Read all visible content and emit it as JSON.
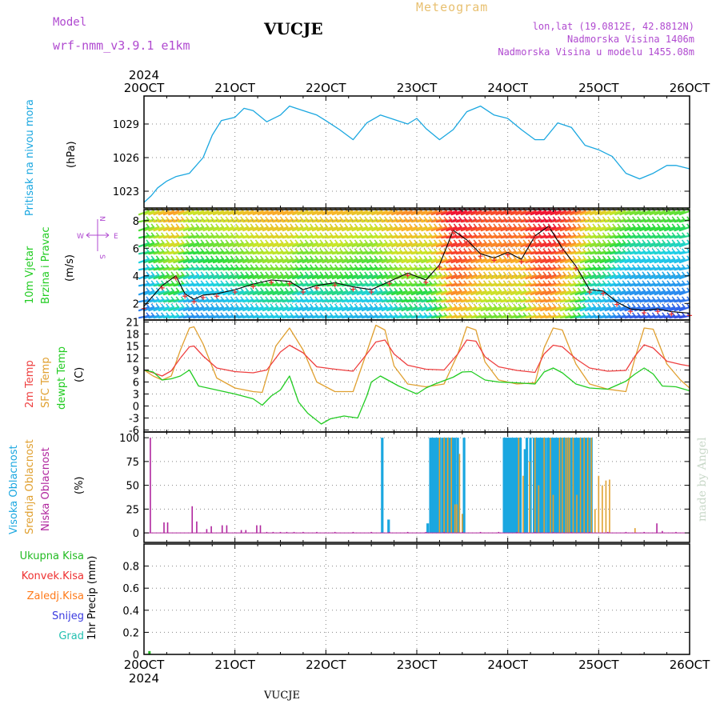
{
  "header": {
    "model_label": "Model",
    "model_name": "wrf-nmm_v3.9.1  e1km",
    "station": "VUCJE",
    "product": "Meteogram",
    "lonlat": "lon,lat (19.0812E, 42.8812N)",
    "elevation": "Nadmorska Visina 1406m",
    "model_elevation": "Nadmorska Visina u modelu 1455.08m",
    "credit": "made by Angel",
    "footer_station": "VUCJE"
  },
  "colors": {
    "pressure": "#1aa7e0",
    "temp2m": "#ee4040",
    "sfc_temp": "#e0a030",
    "dewpt": "#22cc22",
    "cloud_high": "#1aa7e0",
    "cloud_mid": "#e0a030",
    "cloud_low": "#b0269e",
    "precip_total": "#22bb22",
    "precip_conv": "#ee3030",
    "precip_freezing": "#ff7a1a",
    "snow": "#3a3ae0",
    "hail": "#22c0b0",
    "wind_axis_label": "#b04ad0",
    "grid": "#888888"
  },
  "axes": {
    "time_ticks": [
      "20OCT",
      "21OCT",
      "22OCT",
      "23OCT",
      "24OCT",
      "25OCT",
      "26OCT"
    ],
    "year": "2024"
  },
  "panels": {
    "pressure": {
      "ylabel": "Pritisak na nivou mora",
      "unit": "(hPa)",
      "yticks": [
        "1023",
        "1026",
        "1029"
      ]
    },
    "wind": {
      "ylabel_1": "10m Vjetar",
      "ylabel_2": "Brzina i Pravac",
      "unit": "(m/s)",
      "compass_n": "N",
      "compass_s": "S",
      "compass_w": "W",
      "compass_e": "E",
      "yticks": [
        "2",
        "4",
        "6",
        "8"
      ]
    },
    "temperature": {
      "ylabel_1": "2m Temp",
      "ylabel_2": "SFC Temp",
      "ylabel_3": "dewpt Temp",
      "unit": "(C)",
      "yticks": [
        "-6",
        "-3",
        "0",
        "3",
        "6",
        "9",
        "12",
        "15",
        "18",
        "21"
      ]
    },
    "clouds": {
      "ylabel_1": "Visoka Oblacnost",
      "ylabel_2": "Srednja Oblacnost",
      "ylabel_3": "Niska Oblacnost",
      "unit": "(%)",
      "yticks": [
        "0",
        "25",
        "50",
        "75",
        "100"
      ]
    },
    "precip": {
      "legend": [
        "Ukupna Kisa",
        "Konvek.Kisa",
        "Zaledj.Kisa",
        "Snijeg",
        "Grad"
      ],
      "ylabel": "1hr Precip (mm)",
      "yticks": [
        "0",
        "0.2",
        "0.4",
        "0.6",
        "0.8"
      ]
    }
  },
  "chart_data": [
    {
      "type": "line",
      "title": "Pritisak na nivou mora (hPa)",
      "ylim": [
        1021.5,
        1031.5
      ],
      "x_unit": "days since 20OCT 00Z",
      "series": [
        {
          "name": "Pritisak na nivou mora",
          "x": [
            0.0,
            0.08,
            0.15,
            0.25,
            0.35,
            0.5,
            0.65,
            0.75,
            0.85,
            1.0,
            1.1,
            1.2,
            1.35,
            1.5,
            1.6,
            1.75,
            1.9,
            2.0,
            2.15,
            2.3,
            2.45,
            2.6,
            2.75,
            2.9,
            3.0,
            3.1,
            3.25,
            3.4,
            3.55,
            3.7,
            3.85,
            4.0,
            4.15,
            4.3,
            4.4,
            4.55,
            4.7,
            4.85,
            5.0,
            5.15,
            5.3,
            5.45,
            5.6,
            5.75,
            5.85,
            6.0
          ],
          "y": [
            1022.0,
            1022.6,
            1023.3,
            1023.9,
            1024.3,
            1024.6,
            1026.0,
            1028.0,
            1029.3,
            1029.6,
            1030.4,
            1030.2,
            1029.2,
            1029.8,
            1030.6,
            1030.2,
            1029.8,
            1029.3,
            1028.5,
            1027.6,
            1029.1,
            1029.8,
            1029.4,
            1029.0,
            1029.5,
            1028.6,
            1027.6,
            1028.5,
            1030.1,
            1030.6,
            1029.8,
            1029.5,
            1028.5,
            1027.6,
            1027.6,
            1029.1,
            1028.7,
            1027.1,
            1026.7,
            1026.1,
            1024.6,
            1024.1,
            1024.6,
            1025.3,
            1025.3,
            1025.0
          ]
        }
      ]
    },
    {
      "type": "line",
      "title": "10m Vjetar Brzina i Pravac (m/s)",
      "ylim": [
        0.8,
        8.8
      ],
      "series": [
        {
          "name": "10m Vjetar",
          "x": [
            0.0,
            0.2,
            0.35,
            0.45,
            0.55,
            0.65,
            0.8,
            1.0,
            1.2,
            1.4,
            1.6,
            1.75,
            1.9,
            2.1,
            2.3,
            2.5,
            2.7,
            2.9,
            3.1,
            3.25,
            3.4,
            3.55,
            3.7,
            3.85,
            4.0,
            4.15,
            4.3,
            4.45,
            4.6,
            4.75,
            4.9,
            5.05,
            5.2,
            5.35,
            5.5,
            5.65,
            5.8,
            6.0
          ],
          "y": [
            1.8,
            3.3,
            4.0,
            2.7,
            2.3,
            2.6,
            2.7,
            3.0,
            3.4,
            3.7,
            3.6,
            3.0,
            3.3,
            3.5,
            3.2,
            3.0,
            3.6,
            4.2,
            3.7,
            4.8,
            7.3,
            6.6,
            5.6,
            5.3,
            5.7,
            5.2,
            6.9,
            7.6,
            6.0,
            4.7,
            3.0,
            2.9,
            2.1,
            1.6,
            1.5,
            1.6,
            1.4,
            1.3
          ]
        }
      ]
    },
    {
      "type": "line",
      "title": "2m Temp / SFC Temp / dewpt Temp (C)",
      "ylim": [
        -6.5,
        21.5
      ],
      "series": [
        {
          "name": "2m Temp",
          "x": [
            0.0,
            0.1,
            0.2,
            0.3,
            0.4,
            0.5,
            0.55,
            0.65,
            0.8,
            1.0,
            1.2,
            1.35,
            1.5,
            1.6,
            1.75,
            1.9,
            2.1,
            2.3,
            2.45,
            2.55,
            2.65,
            2.75,
            2.9,
            3.1,
            3.3,
            3.45,
            3.55,
            3.65,
            3.75,
            3.9,
            4.1,
            4.3,
            4.4,
            4.5,
            4.6,
            4.75,
            4.9,
            5.1,
            5.3,
            5.4,
            5.5,
            5.6,
            5.75,
            5.9,
            6.0
          ],
          "y": [
            9.0,
            8.3,
            7.5,
            8.8,
            12.0,
            14.8,
            15.0,
            12.5,
            9.5,
            8.6,
            8.3,
            9.0,
            13.5,
            15.2,
            13.3,
            9.8,
            9.2,
            8.7,
            13.0,
            16.0,
            16.5,
            13.0,
            10.2,
            9.2,
            9.0,
            13.0,
            16.5,
            16.2,
            12.3,
            9.8,
            8.9,
            8.4,
            13.0,
            15.2,
            14.8,
            11.8,
            9.5,
            8.7,
            8.9,
            12.5,
            15.3,
            14.5,
            11.2,
            10.4,
            10.0
          ]
        },
        {
          "name": "SFC Temp",
          "x": [
            0.0,
            0.1,
            0.2,
            0.3,
            0.4,
            0.5,
            0.55,
            0.65,
            0.8,
            1.0,
            1.2,
            1.3,
            1.45,
            1.6,
            1.75,
            1.9,
            2.1,
            2.3,
            2.45,
            2.55,
            2.65,
            2.75,
            2.9,
            3.1,
            3.3,
            3.45,
            3.55,
            3.65,
            3.75,
            3.9,
            4.1,
            4.3,
            4.4,
            4.5,
            4.6,
            4.75,
            4.9,
            5.1,
            5.3,
            5.4,
            5.5,
            5.6,
            5.75,
            5.9,
            6.0
          ],
          "y": [
            9.0,
            7.5,
            6.5,
            7.5,
            14.0,
            19.5,
            19.8,
            15.5,
            7.0,
            4.5,
            3.6,
            3.4,
            15.0,
            19.5,
            14.0,
            6.0,
            3.6,
            3.6,
            13.5,
            20.2,
            19.0,
            10.0,
            5.5,
            4.8,
            5.5,
            13.0,
            19.8,
            19.0,
            11.0,
            6.5,
            5.5,
            5.8,
            14.5,
            19.5,
            19.0,
            10.5,
            5.5,
            4.2,
            3.6,
            12.0,
            19.5,
            19.2,
            10.5,
            6.5,
            4.5
          ]
        },
        {
          "name": "dewpt Temp",
          "x": [
            0.0,
            0.1,
            0.2,
            0.3,
            0.4,
            0.5,
            0.6,
            0.7,
            0.8,
            1.0,
            1.2,
            1.3,
            1.4,
            1.5,
            1.6,
            1.7,
            1.8,
            1.95,
            2.05,
            2.2,
            2.35,
            2.45,
            2.5,
            2.6,
            2.8,
            3.0,
            3.1,
            3.2,
            3.4,
            3.5,
            3.6,
            3.75,
            3.9,
            4.1,
            4.3,
            4.4,
            4.5,
            4.6,
            4.75,
            4.9,
            5.1,
            5.3,
            5.4,
            5.5,
            5.6,
            5.7,
            5.85,
            6.0
          ],
          "y": [
            9.0,
            8.5,
            6.5,
            6.8,
            7.5,
            9.0,
            5.0,
            4.5,
            4.0,
            3.0,
            1.8,
            0.2,
            2.5,
            4.0,
            7.5,
            1.0,
            -1.8,
            -4.5,
            -3.2,
            -2.5,
            -3.0,
            2.5,
            6.0,
            7.5,
            5.0,
            3.0,
            4.5,
            5.5,
            7.2,
            8.5,
            8.6,
            6.5,
            6.0,
            5.8,
            5.5,
            8.5,
            9.5,
            8.3,
            5.5,
            4.5,
            4.2,
            6.2,
            8.0,
            9.5,
            8.0,
            5.0,
            4.8,
            3.8
          ]
        }
      ]
    },
    {
      "type": "bar",
      "title": "Visoka / Srednja / Niska Oblacnost (%)",
      "ylim": [
        0,
        100
      ],
      "series": [
        {
          "name": "Visoka Oblacnost",
          "x": [
            2.62,
            2.69,
            3.12,
            3.15,
            3.17,
            3.19,
            3.21,
            3.23,
            3.25,
            3.28,
            3.3,
            3.32,
            3.34,
            3.36,
            3.38,
            3.4,
            3.42,
            3.45,
            3.52,
            3.96,
            3.98,
            4.0,
            4.02,
            4.04,
            4.06,
            4.08,
            4.1,
            4.12,
            4.14,
            4.19,
            4.21,
            4.25,
            4.29,
            4.31,
            4.33,
            4.35,
            4.37,
            4.39,
            4.41,
            4.44,
            4.46,
            4.48,
            4.5,
            4.52,
            4.54,
            4.56,
            4.58,
            4.6,
            4.62,
            4.64,
            4.66,
            4.68,
            4.7,
            4.73,
            4.75,
            4.77,
            4.79,
            4.81,
            4.83,
            4.85,
            4.87,
            4.89,
            4.92
          ],
          "y": [
            100,
            14,
            10,
            100,
            100,
            100,
            100,
            100,
            100,
            100,
            100,
            100,
            100,
            100,
            100,
            100,
            100,
            100,
            100,
            100,
            100,
            100,
            100,
            100,
            100,
            100,
            100,
            100,
            100,
            88,
            100,
            100,
            100,
            100,
            100,
            100,
            100,
            100,
            100,
            100,
            100,
            100,
            100,
            100,
            100,
            100,
            100,
            100,
            100,
            100,
            100,
            100,
            100,
            100,
            100,
            100,
            100,
            100,
            100,
            100,
            100,
            100,
            100
          ]
        },
        {
          "name": "Srednja Oblacnost",
          "x": [
            3.25,
            3.3,
            3.34,
            3.38,
            3.42,
            3.44,
            3.47,
            3.5,
            4.12,
            4.17,
            4.24,
            4.3,
            4.34,
            4.4,
            4.47,
            4.5,
            4.57,
            4.6,
            4.64,
            4.66,
            4.68,
            4.72,
            4.76,
            4.8,
            4.84,
            4.88,
            4.92,
            4.96,
            5.0,
            5.04,
            5.08,
            5.12,
            5.4
          ],
          "y": [
            100,
            100,
            100,
            100,
            30,
            30,
            83,
            20,
            100,
            60,
            75,
            100,
            50,
            100,
            100,
            40,
            100,
            100,
            100,
            100,
            100,
            100,
            40,
            100,
            100,
            100,
            100,
            25,
            60,
            50,
            55,
            56,
            5
          ]
        },
        {
          "name": "Niska Oblacnost",
          "x": [
            0.07,
            0.22,
            0.26,
            0.53,
            0.58,
            0.69,
            0.74,
            0.86,
            0.91,
            1.07,
            1.12,
            1.24,
            1.28,
            1.35,
            1.42,
            1.5,
            1.57,
            1.65,
            1.75,
            1.9,
            2.1,
            2.3,
            2.5,
            2.7,
            2.9,
            3.1,
            3.3,
            3.5,
            3.7,
            3.9,
            4.1,
            4.3,
            4.5,
            4.7,
            4.9,
            5.1,
            5.3,
            5.5,
            5.64,
            5.7,
            5.85
          ],
          "y": [
            100,
            11,
            11,
            28,
            12,
            4,
            7,
            8,
            8,
            3,
            3,
            8,
            8,
            1,
            1,
            1,
            1,
            1,
            1,
            1,
            1,
            1,
            1,
            1,
            1,
            1,
            1,
            1,
            1,
            1,
            1,
            1,
            1,
            1,
            1,
            1,
            1,
            1,
            10,
            2,
            1
          ]
        }
      ]
    },
    {
      "type": "bar",
      "title": "1hr Precip (mm)",
      "ylim": [
        0,
        1.0
      ],
      "series": [
        {
          "name": "Ukupna Kisa",
          "x": [
            0.06
          ],
          "y": [
            0.03
          ]
        },
        {
          "name": "Konvek.Kisa",
          "x": [
            5.46
          ],
          "y": [
            0.005
          ]
        },
        {
          "name": "Zaledj.Kisa",
          "x": [],
          "y": []
        },
        {
          "name": "Snijeg",
          "x": [],
          "y": []
        },
        {
          "name": "Grad",
          "x": [],
          "y": []
        }
      ]
    }
  ]
}
